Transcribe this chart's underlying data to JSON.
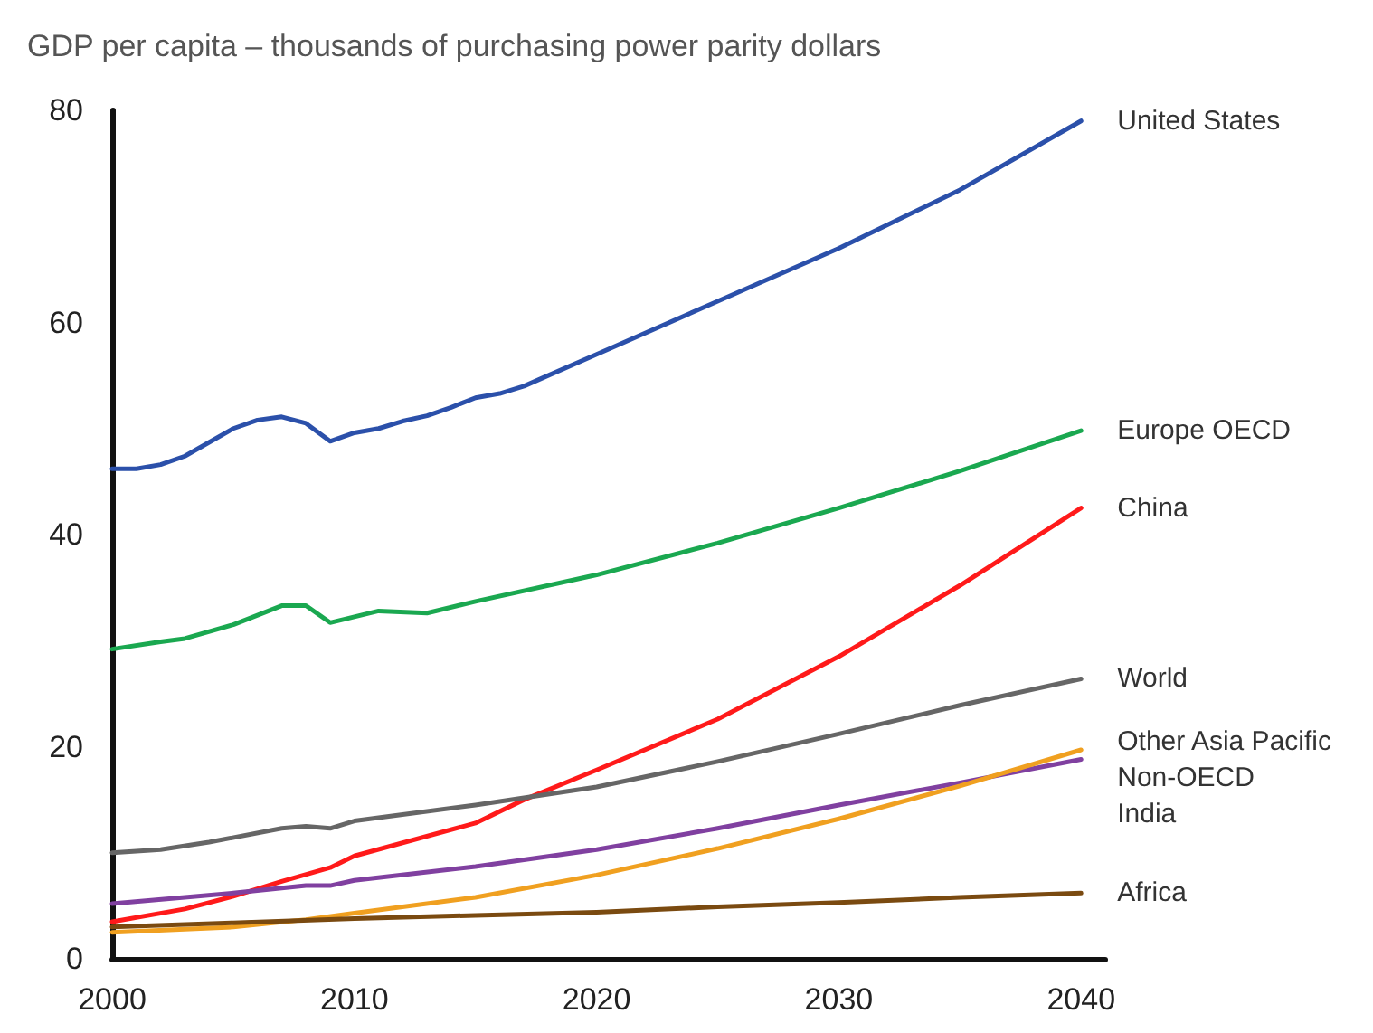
{
  "chart_data": {
    "type": "line",
    "title": "GDP per capita – thousands of purchasing power parity dollars",
    "xlim": [
      2000,
      2041
    ],
    "xticks": [
      2000,
      2010,
      2020,
      2030,
      2040
    ],
    "ylim": [
      0,
      80
    ],
    "yticks": [
      0,
      20,
      40,
      60,
      80
    ],
    "grid": false,
    "legend": false,
    "marker": "none",
    "line_style": "solid",
    "series": [
      {
        "name": "United States",
        "color": "#2b50aa",
        "x": [
          2000,
          2001,
          2002,
          2003,
          2004,
          2005,
          2006,
          2007,
          2008,
          2009,
          2010,
          2011,
          2012,
          2013,
          2014,
          2015,
          2016,
          2017,
          2018,
          2020,
          2025,
          2030,
          2035,
          2040
        ],
        "values": [
          46.2,
          46.2,
          46.6,
          47.4,
          48.7,
          50,
          50.8,
          51.1,
          50.5,
          48.8,
          49.6,
          50,
          50.7,
          51.2,
          52,
          52.9,
          53.3,
          54,
          55,
          57,
          62,
          67,
          72.5,
          79
        ]
      },
      {
        "name": "Europe OECD",
        "color": "#1aa850",
        "x": [
          2000,
          2002,
          2003,
          2005,
          2007,
          2008,
          2009,
          2011,
          2013,
          2015,
          2020,
          2025,
          2030,
          2035,
          2040
        ],
        "values": [
          29.2,
          29.9,
          30.2,
          31.5,
          33.3,
          33.3,
          31.7,
          32.8,
          32.6,
          33.7,
          36.2,
          39.2,
          42.5,
          46,
          49.8
        ]
      },
      {
        "name": "China",
        "color": "#ff1a1a",
        "x": [
          2000,
          2003,
          2005,
          2007,
          2009,
          2010,
          2015,
          2017,
          2020,
          2025,
          2030,
          2035,
          2040
        ],
        "values": [
          3.5,
          4.7,
          5.9,
          7.3,
          8.6,
          9.7,
          12.8,
          15,
          17.8,
          22.6,
          28.5,
          35.2,
          42.5
        ]
      },
      {
        "name": "World",
        "color": "#666666",
        "x": [
          2000,
          2002,
          2004,
          2007,
          2008,
          2009,
          2010,
          2015,
          2020,
          2025,
          2030,
          2035,
          2040
        ],
        "values": [
          10,
          10.3,
          11,
          12.3,
          12.5,
          12.3,
          13,
          14.5,
          16.2,
          18.6,
          21.2,
          23.9,
          26.4
        ]
      },
      {
        "name": "Other Asia Pacific Non-OECD",
        "color": "#8040a0",
        "x": [
          2000,
          2005,
          2008,
          2009,
          2010,
          2015,
          2020,
          2025,
          2030,
          2035,
          2040
        ],
        "values": [
          5.2,
          6.2,
          6.9,
          6.9,
          7.4,
          8.7,
          10.3,
          12.3,
          14.5,
          16.6,
          18.8
        ]
      },
      {
        "name": "India",
        "color": "#f0a020",
        "x": [
          2000,
          2005,
          2008,
          2010,
          2015,
          2020,
          2025,
          2030,
          2035,
          2040
        ],
        "values": [
          2.5,
          3,
          3.7,
          4.3,
          5.8,
          7.9,
          10.4,
          13.2,
          16.3,
          19.7
        ]
      },
      {
        "name": "Africa",
        "color": "#7a4a10",
        "x": [
          2000,
          2005,
          2010,
          2015,
          2020,
          2025,
          2030,
          2035,
          2040
        ],
        "values": [
          3,
          3.4,
          3.8,
          4.1,
          4.4,
          4.9,
          5.3,
          5.8,
          6.2
        ]
      }
    ]
  }
}
